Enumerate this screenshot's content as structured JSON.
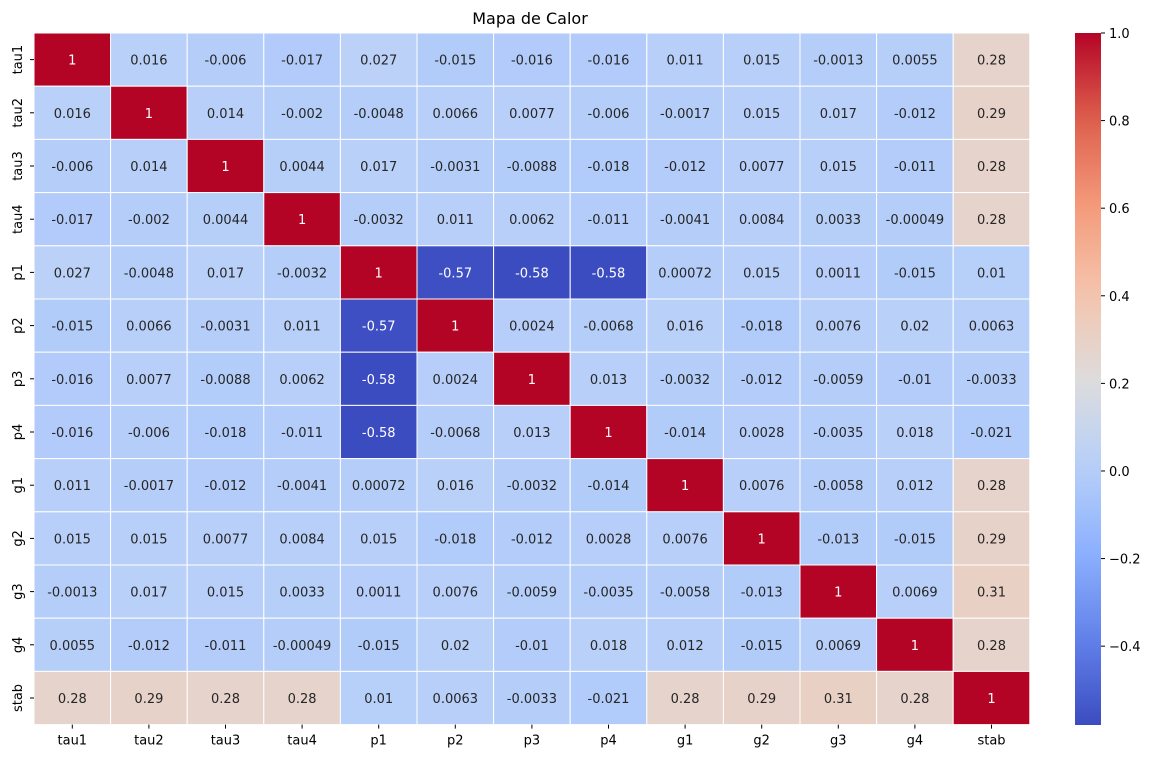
{
  "chart_data": {
    "type": "heatmap",
    "title": "Mapa de Calor",
    "x_labels": [
      "tau1",
      "tau2",
      "tau3",
      "tau4",
      "p1",
      "p2",
      "p3",
      "p4",
      "g1",
      "g2",
      "g3",
      "g4",
      "stab"
    ],
    "y_labels": [
      "tau1",
      "tau2",
      "tau3",
      "tau4",
      "p1",
      "p2",
      "p3",
      "p4",
      "g1",
      "g2",
      "g3",
      "g4",
      "stab"
    ],
    "values": [
      [
        1,
        0.016,
        -0.006,
        -0.017,
        0.027,
        -0.015,
        -0.016,
        -0.016,
        0.011,
        0.015,
        -0.0013,
        0.0055,
        0.28
      ],
      [
        0.016,
        1,
        0.014,
        -0.002,
        -0.0048,
        0.0066,
        0.0077,
        -0.006,
        -0.0017,
        0.015,
        0.017,
        -0.012,
        0.29
      ],
      [
        -0.006,
        0.014,
        1,
        0.0044,
        0.017,
        -0.0031,
        -0.0088,
        -0.018,
        -0.012,
        0.0077,
        0.015,
        -0.011,
        0.28
      ],
      [
        -0.017,
        -0.002,
        0.0044,
        1,
        -0.0032,
        0.011,
        0.0062,
        -0.011,
        -0.0041,
        0.0084,
        0.0033,
        -0.00049,
        0.28
      ],
      [
        0.027,
        -0.0048,
        0.017,
        -0.0032,
        1,
        -0.57,
        -0.58,
        -0.58,
        0.00072,
        0.015,
        0.0011,
        -0.015,
        0.01
      ],
      [
        -0.015,
        0.0066,
        -0.0031,
        0.011,
        -0.57,
        1,
        0.0024,
        -0.0068,
        0.016,
        -0.018,
        0.0076,
        0.02,
        0.0063
      ],
      [
        -0.016,
        0.0077,
        -0.0088,
        0.0062,
        -0.58,
        0.0024,
        1,
        0.013,
        -0.0032,
        -0.012,
        -0.0059,
        -0.01,
        -0.0033
      ],
      [
        -0.016,
        -0.006,
        -0.018,
        -0.011,
        -0.58,
        -0.0068,
        0.013,
        1,
        -0.014,
        0.0028,
        -0.0035,
        0.018,
        -0.021
      ],
      [
        0.011,
        -0.0017,
        -0.012,
        -0.0041,
        0.00072,
        0.016,
        -0.0032,
        -0.014,
        1,
        0.0076,
        -0.0058,
        0.012,
        0.28
      ],
      [
        0.015,
        0.015,
        0.0077,
        0.0084,
        0.015,
        -0.018,
        -0.012,
        0.0028,
        0.0076,
        1,
        -0.013,
        -0.015,
        0.29
      ],
      [
        -0.0013,
        0.017,
        0.015,
        0.0033,
        0.0011,
        0.0076,
        -0.0059,
        -0.0035,
        -0.0058,
        -0.013,
        1,
        0.0069,
        0.31
      ],
      [
        0.0055,
        -0.012,
        -0.011,
        -0.00049,
        -0.015,
        0.02,
        -0.01,
        0.018,
        0.012,
        -0.015,
        0.0069,
        1,
        0.28
      ],
      [
        0.28,
        0.29,
        0.28,
        0.28,
        0.01,
        0.0063,
        -0.0033,
        -0.021,
        0.28,
        0.29,
        0.31,
        0.28,
        1
      ]
    ],
    "value_range": [
      -0.58,
      1
    ],
    "colormap": "coolwarm",
    "colorbar": {
      "ticks": [
        1.0,
        0.8,
        0.6,
        0.4,
        0.2,
        0.0,
        -0.2,
        -0.4
      ],
      "tick_labels": [
        "1.0",
        "0.8",
        "0.6",
        "0.4",
        "0.2",
        "0.0",
        "−0.2",
        "−0.4"
      ]
    },
    "cell_border_color": "#ffffff",
    "annotations": true
  }
}
